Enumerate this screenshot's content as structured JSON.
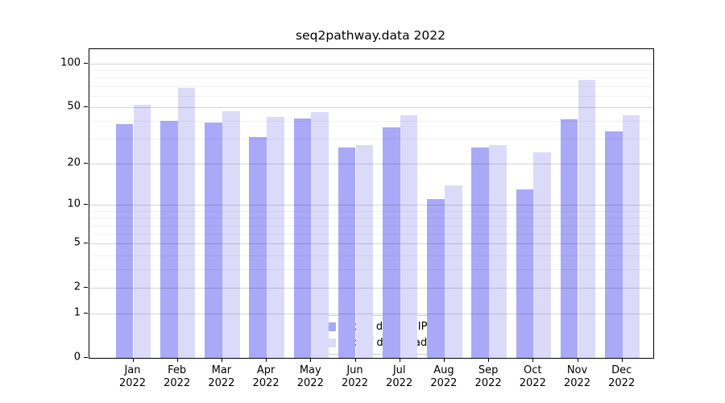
{
  "title": "seq2pathway.data 2022",
  "legend": {
    "items": [
      {
        "label": "Nb of distinct IPs",
        "color": "#a9a9f7"
      },
      {
        "label": "Nb of downloads",
        "color": "#dbdbf9"
      }
    ]
  },
  "colors": {
    "bar_distinct_ips": "#a9a9f7",
    "bar_downloads": "#dbdbf9",
    "axis": "#000000",
    "grid_major": "rgba(0,0,0,0.16)",
    "grid_minor": "rgba(0,0,0,0.055)",
    "legend_border": "#cccccc"
  },
  "chart_data": {
    "type": "bar",
    "title": "seq2pathway.data 2022",
    "categories": [
      "Jan",
      "Feb",
      "Mar",
      "Apr",
      "May",
      "Jun",
      "Jul",
      "Aug",
      "Sep",
      "Oct",
      "Nov",
      "Dec"
    ],
    "year": "2022",
    "series": [
      {
        "name": "Nb of distinct IPs",
        "color": "#a9a9f7",
        "values": [
          38,
          40,
          39,
          31,
          42,
          26,
          36,
          11,
          26,
          13,
          41,
          34
        ]
      },
      {
        "name": "Nb of downloads",
        "color": "#dbdbf9",
        "values": [
          52,
          68,
          47,
          43,
          46,
          27,
          44,
          14,
          27,
          24,
          77,
          44
        ]
      }
    ],
    "xlabel": "",
    "ylabel": "",
    "yscale": "log1p",
    "yticks": [
      100,
      50,
      20,
      10,
      5,
      2,
      1,
      0
    ],
    "minor_gridlines": [
      3,
      4,
      6,
      7,
      8,
      9,
      30,
      40,
      60,
      70,
      80,
      90
    ],
    "ylim": [
      0,
      110
    ],
    "grid": "horizontal",
    "legend_position": "inside-bottom-center"
  }
}
